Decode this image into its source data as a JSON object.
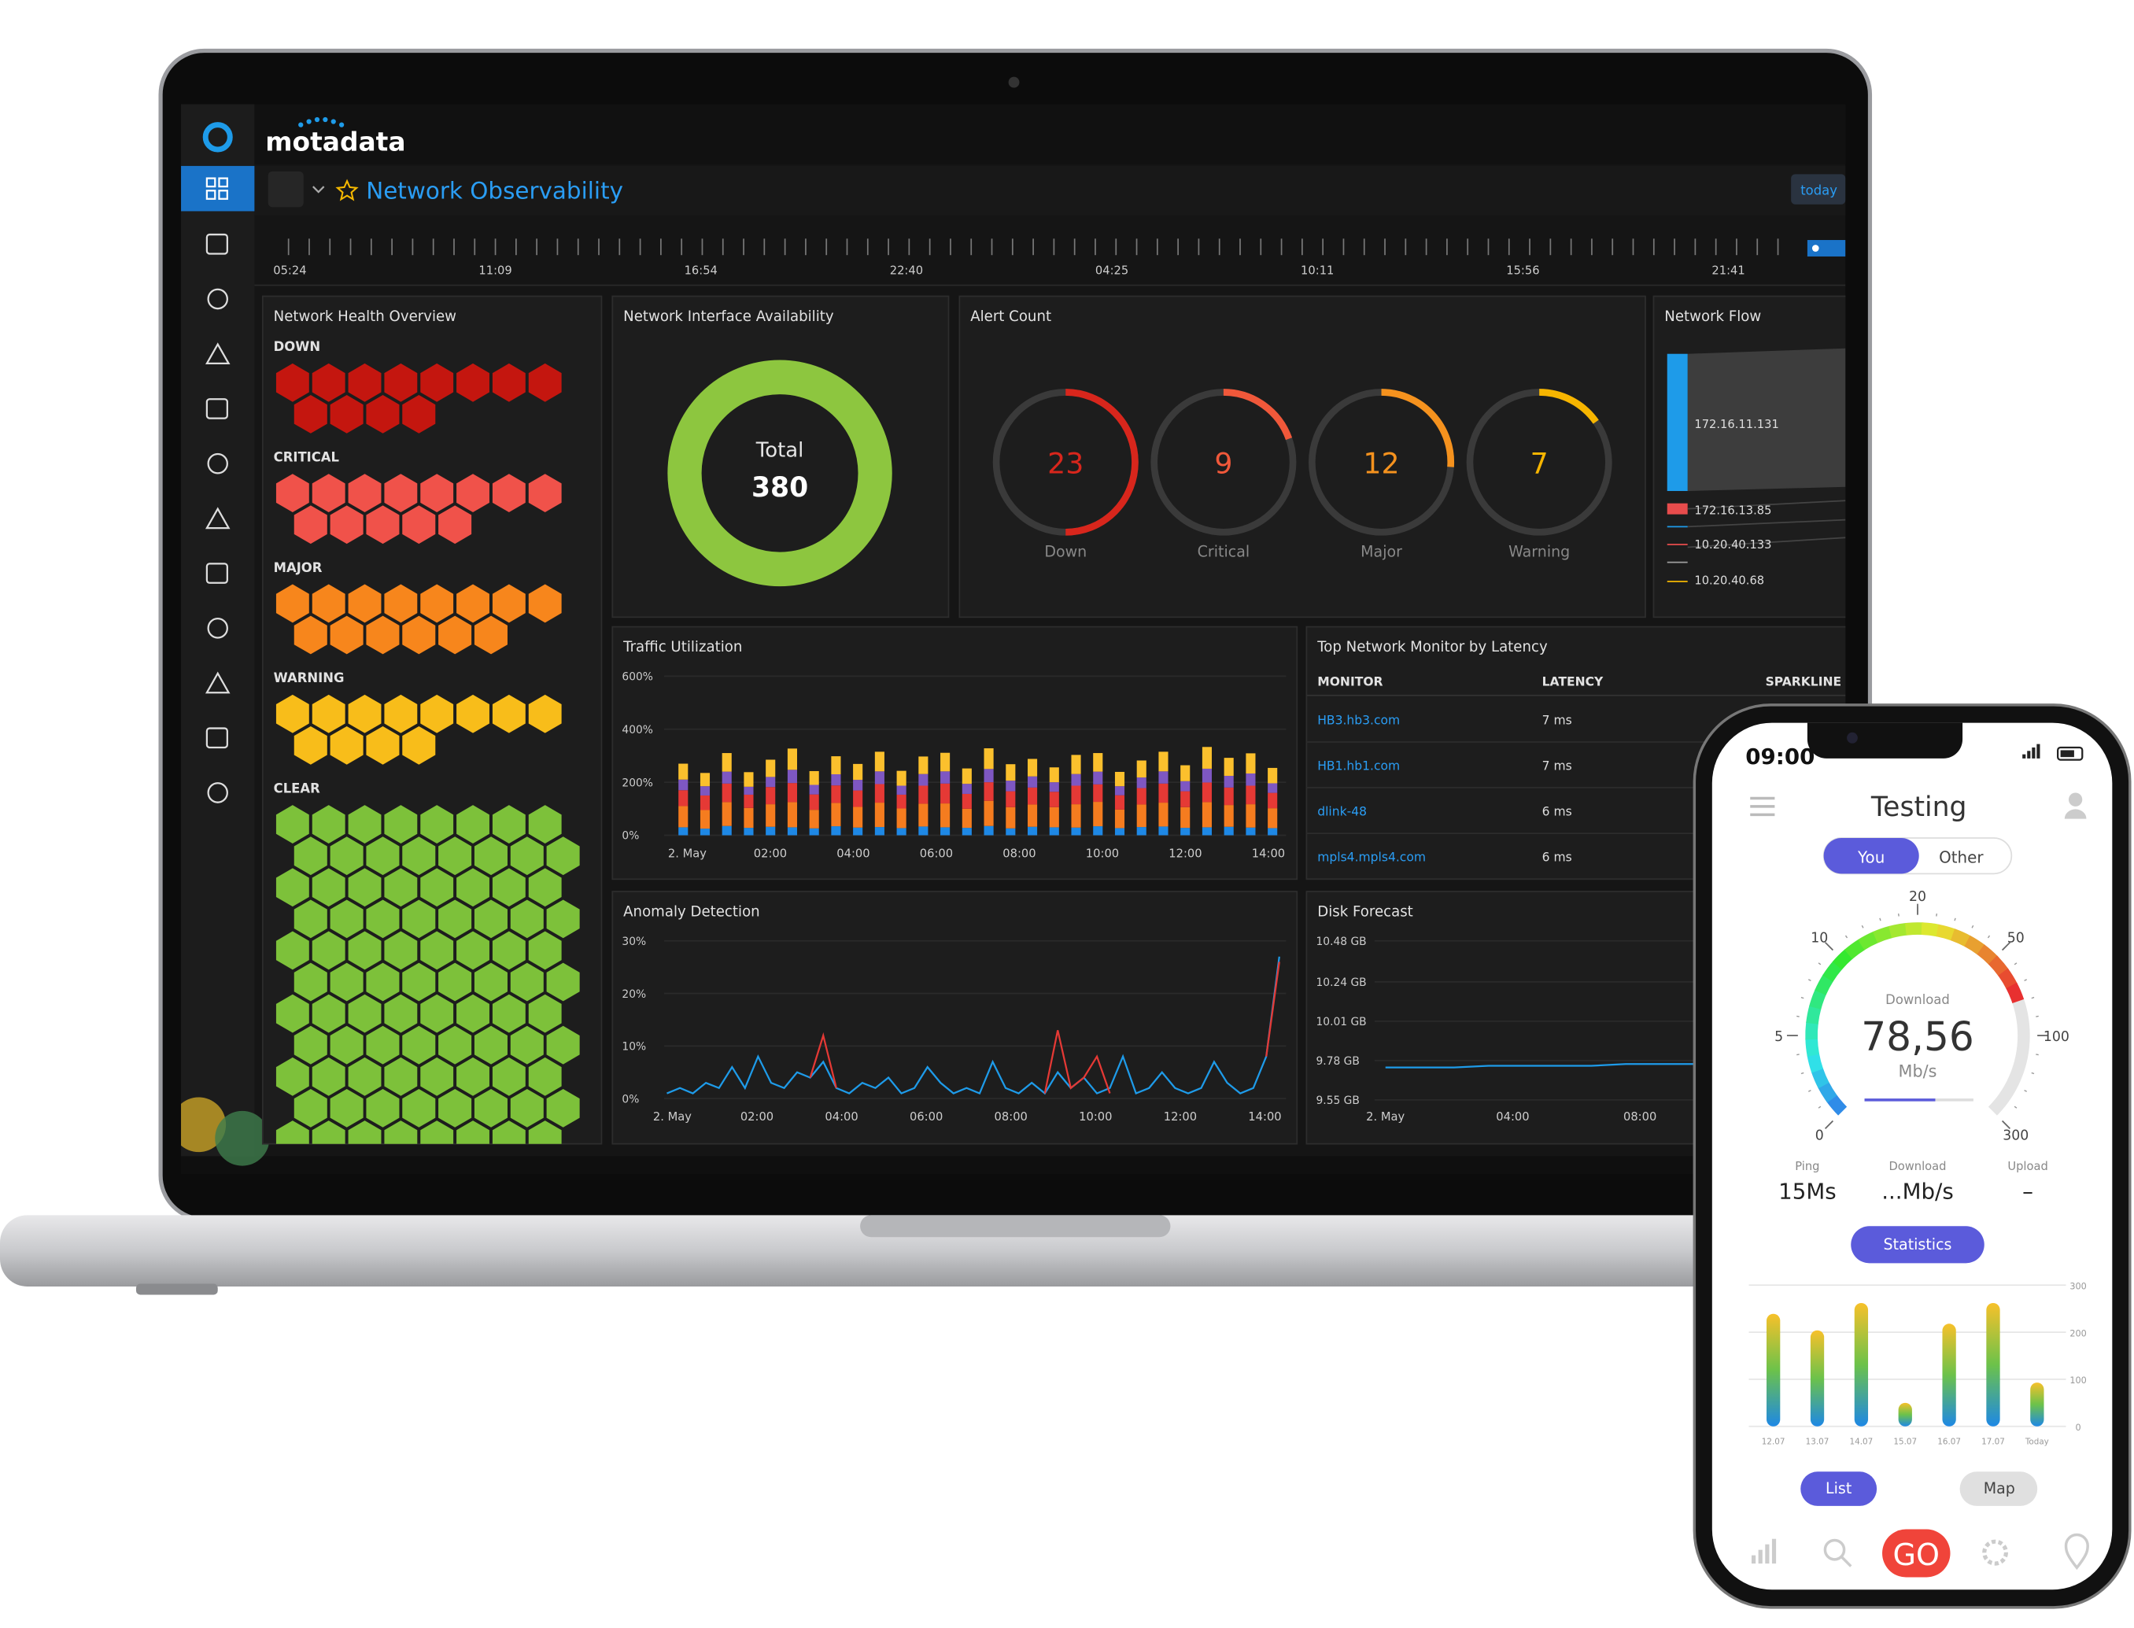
{
  "app": {
    "brand": "motadata",
    "page_title": "Network Observability",
    "time_button": "today",
    "timeline_labels": [
      "05:24",
      "11:09",
      "16:54",
      "22:40",
      "04:25",
      "10:11",
      "15:56",
      "21:41"
    ]
  },
  "health": {
    "title": "Network Health Overview",
    "groups": [
      {
        "label": "DOWN",
        "count": 12,
        "color": "#c4160f"
      },
      {
        "label": "CRITICAL",
        "count": 13,
        "color": "#f0524a"
      },
      {
        "label": "MAJOR",
        "count": 14,
        "color": "#f7861c"
      },
      {
        "label": "WARNING",
        "count": 12,
        "color": "#f8bd1a"
      },
      {
        "label": "CLEAR",
        "count": 88,
        "color": "#7dc13a"
      }
    ]
  },
  "availability": {
    "title": "Network Interface Availability",
    "center_label": "Total",
    "total": 380,
    "color": "#8dc63f"
  },
  "alerts": {
    "title": "Alert Count",
    "items": [
      {
        "label": "Down",
        "value": 23,
        "color": "#d8261c"
      },
      {
        "label": "Critical",
        "value": 9,
        "color": "#f0583a"
      },
      {
        "label": "Major",
        "value": 12,
        "color": "#f5921e"
      },
      {
        "label": "Warning",
        "value": 7,
        "color": "#f7b500"
      }
    ]
  },
  "flow": {
    "title": "Network Flow",
    "nodes": [
      "172.16.11.131",
      "172.16.13.85",
      "10.20.40.133",
      "10.20.40.68"
    ]
  },
  "traffic": {
    "type": "bar",
    "stacked": true,
    "title": "Traffic Utilization",
    "categories": [
      "2. May",
      "02:00",
      "04:00",
      "06:00",
      "08:00",
      "10:00",
      "12:00",
      "14:00"
    ],
    "ylim": [
      0,
      600
    ],
    "yticks": [
      {
        "value": 0,
        "label": "0%"
      },
      {
        "value": 200,
        "label": "200%"
      },
      {
        "value": 400,
        "label": "400%"
      },
      {
        "value": 600,
        "label": "600%"
      }
    ],
    "series": [
      {
        "color": "#1e88e5",
        "values": [
          30,
          25,
          35,
          28,
          32,
          30,
          26,
          34,
          29,
          31,
          27,
          33,
          30,
          28,
          35,
          26,
          32,
          30,
          29,
          34,
          27,
          31,
          33,
          28,
          30,
          32,
          29,
          27
        ]
      },
      {
        "color": "#f57c1f",
        "values": [
          80,
          70,
          90,
          75,
          85,
          95,
          70,
          88,
          78,
          92,
          74,
          86,
          90,
          72,
          95,
          80,
          84,
          76,
          88,
          92,
          70,
          85,
          90,
          78,
          95,
          82,
          88,
          75
        ]
      },
      {
        "color": "#e53935",
        "values": [
          60,
          55,
          70,
          50,
          65,
          72,
          58,
          66,
          62,
          70,
          52,
          68,
          75,
          56,
          70,
          60,
          64,
          58,
          70,
          66,
          54,
          62,
          72,
          60,
          74,
          66,
          70,
          58
        ]
      },
      {
        "color": "#7e57c2",
        "values": [
          40,
          35,
          45,
          30,
          38,
          50,
          36,
          42,
          40,
          48,
          34,
          44,
          46,
          38,
          50,
          40,
          42,
          36,
          44,
          48,
          34,
          40,
          46,
          38,
          52,
          44,
          46,
          36
        ]
      },
      {
        "color": "#fbc02d",
        "values": [
          60,
          50,
          70,
          55,
          65,
          80,
          52,
          68,
          60,
          74,
          56,
          66,
          70,
          58,
          78,
          62,
          66,
          56,
          72,
          70,
          54,
          64,
          74,
          60,
          82,
          68,
          76,
          58
        ]
      }
    ]
  },
  "latency": {
    "title": "Top Network Monitor by Latency",
    "headers": [
      "MONITOR",
      "LATENCY",
      "SPARKLINE"
    ],
    "rows": [
      [
        "HB3.hb3.com",
        "7 ms"
      ],
      [
        "HB1.hb1.com",
        "7 ms"
      ],
      [
        "dlink-48",
        "6 ms"
      ],
      [
        "mpls4.mpls4.com",
        "6 ms"
      ]
    ]
  },
  "anomaly": {
    "type": "line",
    "title": "Anomaly Detection",
    "categories": [
      "2. May",
      "02:00",
      "04:00",
      "06:00",
      "08:00",
      "10:00",
      "12:00",
      "14:00"
    ],
    "ylim": [
      0,
      30
    ],
    "yticks": [
      {
        "value": 0,
        "label": "0%"
      },
      {
        "value": 10,
        "label": "10%"
      },
      {
        "value": 20,
        "label": "20%"
      },
      {
        "value": 30,
        "label": "30%"
      }
    ],
    "series": [
      {
        "color": "#1e9be9",
        "values": [
          1,
          2,
          1,
          3,
          2,
          6,
          2,
          8,
          3,
          2,
          5,
          4,
          7,
          2,
          1,
          3,
          2,
          4,
          1,
          2,
          6,
          3,
          1,
          2,
          1,
          7,
          2,
          1,
          3,
          1,
          5,
          2,
          4,
          1,
          2,
          8,
          1,
          2,
          5,
          2,
          1,
          2,
          7,
          3,
          1,
          2,
          8,
          27
        ]
      },
      {
        "color": "#e53935",
        "values": [
          null,
          null,
          null,
          null,
          null,
          null,
          null,
          null,
          null,
          null,
          null,
          4,
          12,
          2,
          null,
          null,
          null,
          null,
          null,
          null,
          null,
          null,
          null,
          null,
          null,
          null,
          null,
          null,
          null,
          1,
          13,
          2,
          4,
          8,
          1,
          null,
          null,
          null,
          null,
          null,
          null,
          null,
          null,
          null,
          null,
          null,
          8,
          26
        ]
      }
    ]
  },
  "disk": {
    "type": "line",
    "title": "Disk Forecast",
    "categories": [
      "2. May",
      "04:00",
      "08:00"
    ],
    "ylim": [
      9.55,
      10.48
    ],
    "yticks": [
      {
        "value": 9.55,
        "label": "9.55 GB"
      },
      {
        "value": 9.78,
        "label": "9.78 GB"
      },
      {
        "value": 10.01,
        "label": "10.01 GB"
      },
      {
        "value": 10.24,
        "label": "10.24 GB"
      },
      {
        "value": 10.48,
        "label": "10.48 GB"
      }
    ],
    "color": "#1e9be9",
    "values": [
      9.74,
      9.74,
      9.74,
      9.75,
      9.75,
      9.75,
      9.75,
      9.76,
      9.76,
      9.76
    ]
  },
  "phone": {
    "time": "09:00",
    "title": "Testing",
    "tabs": [
      "You",
      "Other"
    ],
    "gauge": {
      "label": "Download",
      "value": {
        "value": 78.56,
        "label": "78,56"
      },
      "unit": "Mb/s",
      "ticks": [
        0,
        5,
        10,
        20,
        50,
        100,
        300
      ]
    },
    "stats": [
      {
        "label": "Ping",
        "value": "15Ms"
      },
      {
        "label": "Download",
        "value": "...Mb/s"
      },
      {
        "label": "Upload",
        "value": "–"
      }
    ],
    "button": "Statistics",
    "chart": {
      "type": "bar",
      "categories": [
        "12.07",
        "13.07",
        "14.07",
        "15.07",
        "16.07",
        "17.07",
        "Today"
      ],
      "values": [
        239,
        204,
        262,
        50,
        218,
        262,
        93
      ],
      "ylim": [
        0,
        300
      ],
      "yticks": [
        0,
        100,
        200,
        300
      ]
    },
    "nav_buttons": [
      "List",
      "Map"
    ],
    "go": "GO"
  }
}
